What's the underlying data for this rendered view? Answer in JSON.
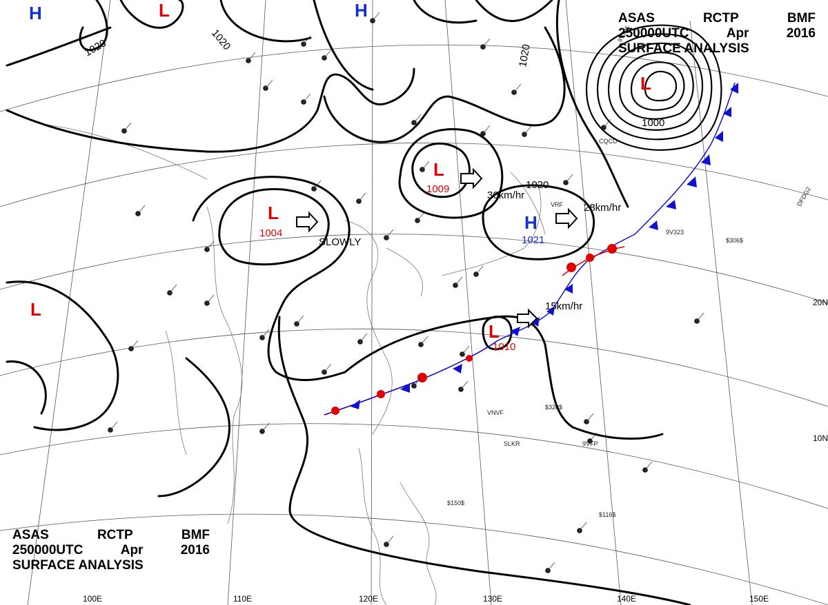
{
  "header": {
    "line1": [
      "ASAS",
      "RCTP",
      "BMF"
    ],
    "line2": [
      "250000UTC",
      "Apr",
      "2016"
    ],
    "line3": "SURFACE ANALYSIS"
  },
  "colors": {
    "low": "#e00000",
    "high": "#1030d0",
    "warm_front": "#e00000",
    "cold_front": "#1010d0",
    "isobar": "#000000"
  },
  "pressure_systems": [
    {
      "type": "L",
      "color": "#e00000"
    },
    {
      "type": "L",
      "color": "#e00000"
    },
    {
      "type": "L",
      "color": "#e00000",
      "value": "1004"
    },
    {
      "type": "L",
      "color": "#e00000",
      "value": "1009"
    },
    {
      "type": "L",
      "color": "#e00000",
      "value": "1010"
    },
    {
      "type": "L",
      "color": "#e00000"
    },
    {
      "type": "H",
      "color": "#1030d0"
    },
    {
      "type": "H",
      "color": "#1030d0"
    },
    {
      "type": "H",
      "color": "#1030d0",
      "value": "1021"
    }
  ],
  "isobar_labels": [
    "1020",
    "1020",
    "1020",
    "1020",
    "1020",
    "1000"
  ],
  "motion": [
    "SLOWLY",
    "30km/hr",
    "28km/hr",
    "15km/hr"
  ],
  "latitude_labels": [
    "20N",
    "10N"
  ],
  "longitude_labels": [
    "100E",
    "110E",
    "120E",
    "130E",
    "140E",
    "150E"
  ],
  "station_codes": [
    "CQCU",
    "VRF",
    "9V795",
    "DFDG2",
    "9V323",
    "VNVF",
    "SLKR",
    "9VFP",
    "$306$",
    "$320$",
    "$150$",
    "$116$"
  ]
}
